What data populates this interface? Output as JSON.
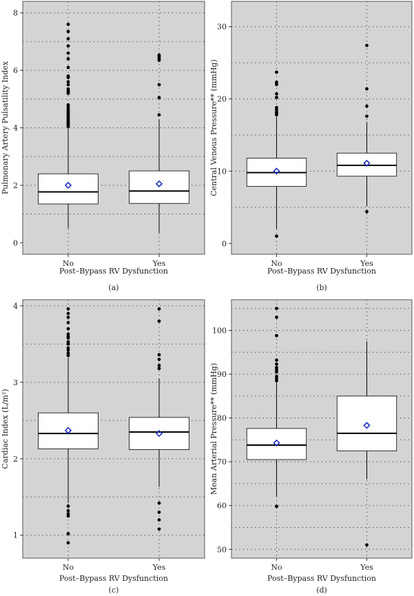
{
  "chart_data": [
    {
      "id": "a",
      "type": "boxplot",
      "panel_label": "(a)",
      "xlabel": "Post–Bypass RV Dysfunction",
      "ylabel": "Pulmonary Artery Pulsatility Index",
      "ylim": [
        -0.4,
        8.4
      ],
      "yticks": [
        0,
        2,
        4,
        6,
        8
      ],
      "ytick_labels": [
        "0",
        "2",
        "4",
        "6",
        "8"
      ],
      "grid_y": [
        1,
        2,
        3,
        4,
        5,
        6,
        7,
        8
      ],
      "categories": [
        "No",
        "Yes"
      ],
      "groups": [
        {
          "name": "No",
          "q1": 1.35,
          "median": 1.77,
          "q3": 2.4,
          "mean": 2.0,
          "whisker_low": 0.5,
          "whisker_high": 4.0,
          "outliers": [
            4.05,
            4.1,
            4.15,
            4.2,
            4.25,
            4.3,
            4.35,
            4.4,
            4.45,
            4.5,
            4.55,
            4.6,
            4.65,
            4.72,
            4.8,
            5.2,
            5.25,
            5.3,
            5.35,
            5.5,
            5.6,
            5.75,
            5.8,
            6.1,
            6.4,
            6.6,
            6.85,
            7.1,
            7.35,
            7.6
          ]
        },
        {
          "name": "Yes",
          "q1": 1.37,
          "median": 1.8,
          "q3": 2.5,
          "mean": 2.05,
          "whisker_low": 0.35,
          "whisker_high": 4.3,
          "outliers": [
            4.45,
            5.05,
            5.5,
            6.35,
            6.42,
            6.48,
            6.53
          ]
        }
      ]
    },
    {
      "id": "b",
      "type": "boxplot",
      "panel_label": "(b)",
      "xlabel": "Post–Bypass RV Dysfunction",
      "ylabel": "Central Venous Pressure** (mmHg)",
      "ylim": [
        -1.5,
        33.5
      ],
      "yticks": [
        0,
        10,
        20,
        30
      ],
      "ytick_labels": [
        "0",
        "10",
        "20",
        "30"
      ],
      "grid_y": [
        5,
        10,
        15,
        20,
        25,
        30
      ],
      "categories": [
        "No",
        "Yes"
      ],
      "groups": [
        {
          "name": "No",
          "q1": 7.9,
          "median": 9.8,
          "q3": 11.8,
          "mean": 10.0,
          "whisker_low": 2.0,
          "whisker_high": 17.5,
          "outliers": [
            1.0,
            17.8,
            18.0,
            18.2,
            18.5,
            18.8,
            20.2,
            20.7,
            22.0,
            22.3,
            23.7
          ]
        },
        {
          "name": "Yes",
          "q1": 9.3,
          "median": 10.8,
          "q3": 12.5,
          "mean": 11.1,
          "whisker_low": 5.2,
          "whisker_high": 16.8,
          "outliers": [
            4.4,
            17.6,
            19.0,
            21.4,
            27.4
          ]
        }
      ]
    },
    {
      "id": "c",
      "type": "boxplot",
      "panel_label": "(c)",
      "xlabel": "Post–Bypass RV Dysfunction",
      "ylabel": "Cardiac Index (L/m²)",
      "ylim": [
        0.7,
        4.08
      ],
      "yticks": [
        1,
        2,
        3,
        4
      ],
      "ytick_labels": [
        "1",
        "2",
        "3",
        "4"
      ],
      "grid_y": [
        1,
        1.5,
        2,
        2.5,
        3,
        3.5,
        4
      ],
      "categories": [
        "No",
        "Yes"
      ],
      "groups": [
        {
          "name": "No",
          "q1": 2.13,
          "median": 2.33,
          "q3": 2.6,
          "mean": 2.37,
          "whisker_low": 1.42,
          "whisker_high": 3.32,
          "outliers": [
            0.9,
            1.02,
            1.25,
            1.28,
            1.32,
            1.38,
            3.35,
            3.38,
            3.42,
            3.45,
            3.5,
            3.53,
            3.58,
            3.6,
            3.63,
            3.7,
            3.78,
            3.85,
            3.9,
            3.96
          ]
        },
        {
          "name": "Yes",
          "q1": 2.12,
          "median": 2.35,
          "q3": 2.54,
          "mean": 2.33,
          "whisker_low": 1.63,
          "whisker_high": 3.05,
          "outliers": [
            1.08,
            1.2,
            1.3,
            1.42,
            3.18,
            3.22,
            3.3,
            3.36,
            3.8,
            3.96
          ]
        }
      ]
    },
    {
      "id": "d",
      "type": "boxplot",
      "panel_label": "(d)",
      "xlabel": "Post–Bypass RV Dysfunction",
      "ylabel": "Mean Arterial Pressure** (mmHg)",
      "ylim": [
        48,
        107
      ],
      "yticks": [
        50,
        60,
        70,
        80,
        90,
        100
      ],
      "ytick_labels": [
        "50",
        "60",
        "70",
        "80",
        "90",
        "100"
      ],
      "grid_y": [
        50,
        55,
        60,
        65,
        70,
        75,
        80,
        85,
        90,
        95,
        100,
        105
      ],
      "categories": [
        "No",
        "Yes"
      ],
      "groups": [
        {
          "name": "No",
          "q1": 70.5,
          "median": 73.8,
          "q3": 77.6,
          "mean": 74.3,
          "whisker_low": 62.0,
          "whisker_high": 88.0,
          "outliers": [
            59.8,
            88.5,
            89.0,
            89.5,
            90.5,
            91.0,
            91.5,
            92.3,
            93.2,
            98.8,
            103.0,
            105.0
          ]
        },
        {
          "name": "Yes",
          "q1": 72.5,
          "median": 76.5,
          "q3": 85.0,
          "mean": 78.3,
          "whisker_low": 66.0,
          "whisker_high": 97.5,
          "outliers": [
            51.0
          ]
        }
      ]
    }
  ],
  "colors": {
    "panel_bg": "#d4d4d4",
    "box_fill": "#ffffff",
    "line": "#000000",
    "mean_marker": "#1f2dbf",
    "grid": "#333333"
  }
}
